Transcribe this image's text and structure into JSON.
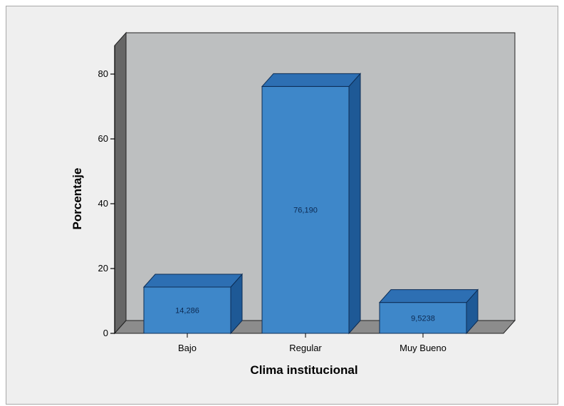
{
  "chart_data": {
    "type": "bar",
    "categories": [
      "Bajo",
      "Regular",
      "Muy Bueno"
    ],
    "values": [
      14.286,
      76.19,
      9.5238
    ],
    "value_labels": [
      "14,286",
      "76,190",
      "9,5238"
    ],
    "xlabel": "Clima institucional",
    "ylabel": "Porcentaje",
    "yticks": [
      "0",
      "20",
      "40",
      "60",
      "80"
    ],
    "ylim": [
      0,
      80
    ],
    "grid": false,
    "style": "3d",
    "colors": {
      "bar_front": "#3e87c9",
      "bar_top": "#2d6fb3",
      "bar_side": "#1e5996",
      "bar_stroke": "#0d2d55",
      "back_wall": "#bdbfc0",
      "side_wall": "#666666",
      "floor": "#8c8c8c"
    }
  }
}
